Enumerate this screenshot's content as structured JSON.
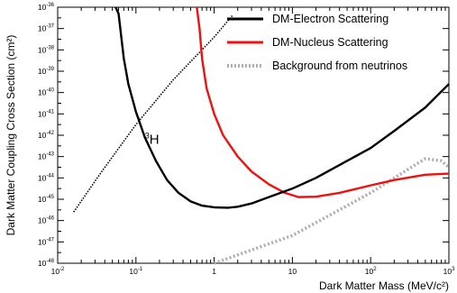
{
  "chart_data": {
    "type": "line",
    "xlabel": "Dark Matter Mass (MeV/c²)",
    "ylabel": "Dark Matter Coupling Cross Section (cm²)",
    "x_scale": "log",
    "y_scale": "log",
    "xlim": [
      0.01,
      1000
    ],
    "ylim": [
      1e-48,
      1e-36
    ],
    "x_ticks": [
      {
        "value": 0.01,
        "base": "10",
        "exp": "-2"
      },
      {
        "value": 0.1,
        "base": "10",
        "exp": "-1"
      },
      {
        "value": 1,
        "base": "1",
        "exp": ""
      },
      {
        "value": 10,
        "base": "10",
        "exp": ""
      },
      {
        "value": 100,
        "base": "10",
        "exp": "2"
      },
      {
        "value": 1000,
        "base": "10",
        "exp": "3"
      }
    ],
    "y_ticks": [
      {
        "value": -36,
        "base": "10",
        "exp": "-36"
      },
      {
        "value": -37,
        "base": "10",
        "exp": "-37"
      },
      {
        "value": -38,
        "base": "10",
        "exp": "-38"
      },
      {
        "value": -39,
        "base": "10",
        "exp": "-39"
      },
      {
        "value": -40,
        "base": "10",
        "exp": "-40"
      },
      {
        "value": -41,
        "base": "10",
        "exp": "-41"
      },
      {
        "value": -42,
        "base": "10",
        "exp": "-42"
      },
      {
        "value": -43,
        "base": "10",
        "exp": "-43"
      },
      {
        "value": -44,
        "base": "10",
        "exp": "-44"
      },
      {
        "value": -45,
        "base": "10",
        "exp": "-45"
      },
      {
        "value": -46,
        "base": "10",
        "exp": "-46"
      },
      {
        "value": -47,
        "base": "10",
        "exp": "-47"
      },
      {
        "value": -48,
        "base": "10",
        "exp": "-48"
      }
    ],
    "grid": false,
    "legend_position": "top-right",
    "series": [
      {
        "name": "DM-Electron Scattering",
        "color": "#000000",
        "style": "solid",
        "points": [
          [
            0.055,
            -36
          ],
          [
            0.06,
            -36.3
          ],
          [
            0.07,
            -38.4
          ],
          [
            0.08,
            -39.6
          ],
          [
            0.1,
            -40.9
          ],
          [
            0.13,
            -42.1
          ],
          [
            0.18,
            -43.2
          ],
          [
            0.25,
            -44.1
          ],
          [
            0.35,
            -44.7
          ],
          [
            0.5,
            -45.1
          ],
          [
            0.7,
            -45.3
          ],
          [
            1.0,
            -45.38
          ],
          [
            1.5,
            -45.4
          ],
          [
            2,
            -45.35
          ],
          [
            3,
            -45.2
          ],
          [
            5,
            -44.9
          ],
          [
            10,
            -44.5
          ],
          [
            20,
            -44.0
          ],
          [
            50,
            -43.2
          ],
          [
            100,
            -42.6
          ],
          [
            200,
            -41.8
          ],
          [
            500,
            -40.7
          ],
          [
            1000,
            -39.6
          ]
        ]
      },
      {
        "name": "DM-Nucleus Scattering",
        "color": "#ee1111",
        "style": "solid",
        "points": [
          [
            0.6,
            -36
          ],
          [
            0.65,
            -37.0
          ],
          [
            0.7,
            -38.4
          ],
          [
            0.8,
            -39.8
          ],
          [
            1.0,
            -41.0
          ],
          [
            1.3,
            -42.0
          ],
          [
            2,
            -43.0
          ],
          [
            3,
            -43.7
          ],
          [
            5,
            -44.3
          ],
          [
            8,
            -44.7
          ],
          [
            12,
            -44.9
          ],
          [
            20,
            -44.88
          ],
          [
            40,
            -44.7
          ],
          [
            100,
            -44.35
          ],
          [
            200,
            -44.1
          ],
          [
            500,
            -43.85
          ],
          [
            1000,
            -43.8
          ]
        ]
      },
      {
        "name": "Background from neutrinos",
        "color": "#b0aca8",
        "style": "dotted",
        "points": [
          [
            1.0,
            -48
          ],
          [
            10,
            -46.7
          ],
          [
            100,
            -44.7
          ],
          [
            300,
            -43.6
          ],
          [
            500,
            -43.1
          ],
          [
            800,
            -43.2
          ],
          [
            1000,
            -43.5
          ]
        ]
      },
      {
        "name": "",
        "color": "#000000",
        "style": "fine-dotted",
        "points": [
          [
            0.016,
            -45.6
          ],
          [
            0.035,
            -43.8
          ],
          [
            0.1,
            -41.5
          ],
          [
            0.3,
            -39.4
          ],
          [
            1.0,
            -37.4
          ],
          [
            1.7,
            -36.4
          ]
        ]
      }
    ],
    "annotations": [
      {
        "text_base": "H",
        "text_sup": "3",
        "x": 0.13,
        "y": -42.4
      }
    ]
  }
}
